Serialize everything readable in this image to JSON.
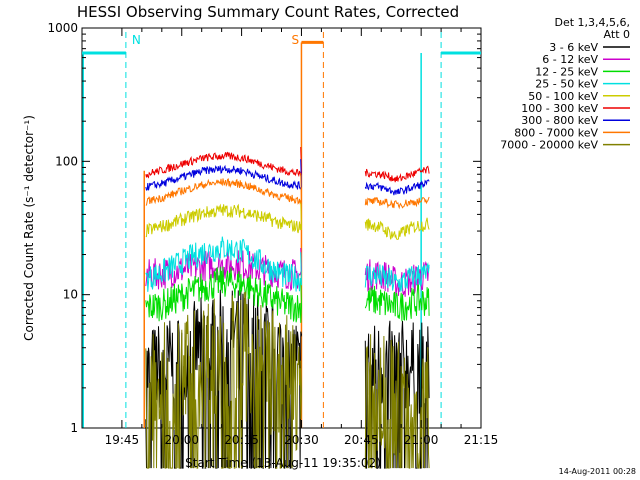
{
  "chart_data": {
    "type": "line",
    "title": "HESSI Observing Summary Count Rates, Corrected",
    "xlabel": "Start Time (13-Aug-11 19:35:02)",
    "ylabel": "Corrected Count Rate (s⁻¹ detector⁻¹)",
    "y_scale": "log",
    "ylim": [
      1,
      1000
    ],
    "xlim_minutes": [
      0,
      100
    ],
    "x_ticks": [
      {
        "m": 10,
        "label": "19:45"
      },
      {
        "m": 25,
        "label": "20:00"
      },
      {
        "m": 40,
        "label": "20:15"
      },
      {
        "m": 55,
        "label": "20:30"
      },
      {
        "m": 70,
        "label": "20:45"
      },
      {
        "m": 85,
        "label": "21:00"
      },
      {
        "m": 100,
        "label": "21:15"
      }
    ],
    "y_ticks": [
      {
        "v": 1,
        "label": "1"
      },
      {
        "v": 10,
        "label": "10"
      },
      {
        "v": 100,
        "label": "100"
      },
      {
        "v": 1000,
        "label": "1000"
      }
    ],
    "legend_header": [
      "Det 1,3,4,5,6,",
      "Att 0"
    ],
    "legend_position": "right",
    "series": [
      {
        "name": "3 - 6 keV",
        "color": "#000000",
        "values": [
          2.6,
          3.0,
          3.6,
          4.5,
          5.0,
          5.2,
          4.6,
          3.8,
          3.0,
          2.8,
          2.9,
          3.0,
          3.0,
          2.9,
          2.8,
          2.9
        ],
        "noise": 0.35
      },
      {
        "name": "6 - 12 keV",
        "color": "#cc00cc",
        "values": [
          14.0,
          14.5,
          15.5,
          16.5,
          17.0,
          16.8,
          15.5,
          14.5,
          14.0,
          14.0,
          14.2,
          13.8,
          12.0,
          12.5,
          13.5,
          14.0
        ],
        "noise": 0.12
      },
      {
        "name": "12 - 25 keV",
        "color": "#00dd00",
        "values": [
          8.0,
          8.5,
          10.0,
          11.5,
          12.5,
          12.0,
          10.0,
          8.5,
          8.0,
          9.0,
          9.0,
          8.5,
          8.0,
          8.5,
          9.0,
          9.0
        ],
        "noise": 0.12
      },
      {
        "name": "25 - 50 keV",
        "color": "#00e0e0",
        "values": [
          13.0,
          15.0,
          18.0,
          21.0,
          22.5,
          21.0,
          17.0,
          14.0,
          13.0,
          14.0,
          14.0,
          13.0,
          12.0,
          13.0,
          14.0,
          14.0
        ],
        "noise": 0.1
      },
      {
        "name": "50 - 100 keV",
        "color": "#cccc00",
        "values": [
          30.0,
          33.0,
          37.0,
          41.0,
          43.0,
          42.0,
          38.0,
          34.0,
          32.0,
          34.0,
          33.0,
          30.0,
          27.0,
          31.0,
          33.0,
          34.0
        ],
        "noise": 0.05
      },
      {
        "name": "100 - 300 keV",
        "color": "#ee0000",
        "values": [
          80.0,
          87.0,
          97.0,
          106.0,
          110.0,
          106.0,
          95.0,
          86.0,
          80.0,
          82.0,
          81.0,
          78.0,
          73.0,
          78.0,
          83.0,
          86.0
        ],
        "noise": 0.03
      },
      {
        "name": "300 - 800 keV",
        "color": "#0000dd",
        "values": [
          64.0,
          69.0,
          77.0,
          85.0,
          88.0,
          85.0,
          76.0,
          69.0,
          65.0,
          66.0,
          65.0,
          62.0,
          58.0,
          62.0,
          66.0,
          68.0
        ],
        "noise": 0.03
      },
      {
        "name": "800 - 7000 keV",
        "color": "#ff7700",
        "values": [
          50.0,
          54.0,
          61.0,
          67.0,
          70.0,
          67.0,
          60.0,
          54.0,
          51.0,
          50.0,
          50.0,
          49.0,
          47.0,
          49.0,
          50.0,
          51.0
        ],
        "noise": 0.03
      },
      {
        "name": "7000 - 20000 keV",
        "color": "#808000",
        "values": [
          1.8,
          2.0,
          2.5,
          3.2,
          3.6,
          3.5,
          3.0,
          2.4,
          2.0,
          1.6,
          1.6,
          1.6,
          1.6,
          1.6,
          1.6,
          1.6
        ],
        "noise": 0.5
      }
    ],
    "segments_minutes": [
      [
        16,
        55
      ],
      [
        71,
        87
      ]
    ],
    "flags": [
      {
        "label": "N",
        "color": "#00e0e0",
        "level": 650,
        "intervals": [
          [
            0,
            11
          ],
          [
            90,
            100
          ]
        ],
        "dashed_at": [
          11,
          90
        ]
      },
      {
        "label": "S",
        "color": "#ff7700",
        "level": 780,
        "intervals": [
          [
            55,
            60.5
          ]
        ],
        "dashed_at": [
          60.5
        ]
      }
    ],
    "timestamp": "14-Aug-2011 00:28"
  }
}
